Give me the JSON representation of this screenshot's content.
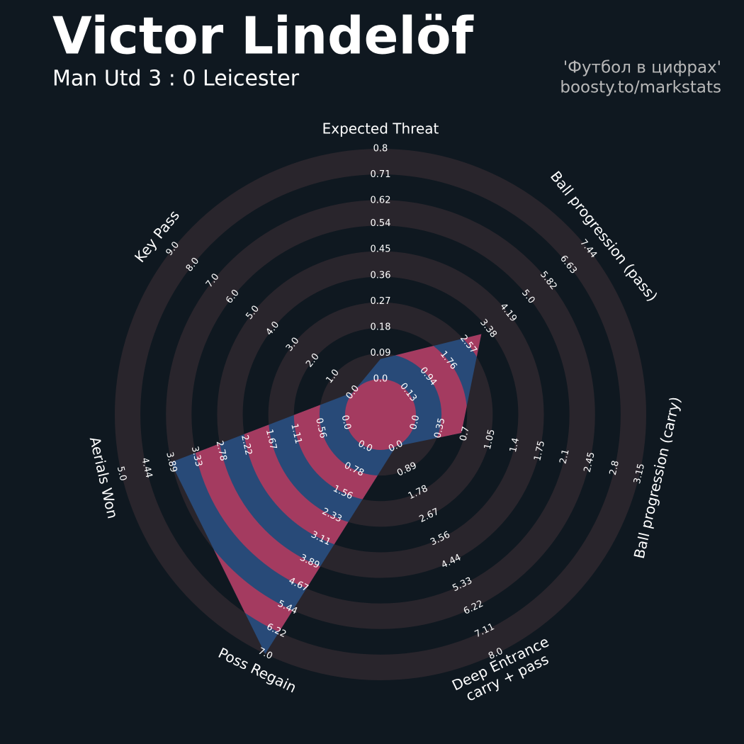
{
  "chart_data": {
    "type": "radar",
    "title": "Victor Lindelöf",
    "subtitle": "Man Utd 3 : 0 Leicester",
    "credits": [
      "'Футбол в цифрах'",
      "boosty.to/markstats"
    ],
    "categories": [
      "Expected Threat",
      "Ball progression (pass)",
      "Ball progression (carry)",
      "Deep Entrance\ncarry + pass",
      "Poss Regain",
      "Aerials Won",
      "Key Pass"
    ],
    "series": [
      {
        "color": "#284a78",
        "stripe_color": "#a43b60",
        "values": [
          0.07,
          3.1,
          0.65,
          0,
          7.0,
          3.9,
          0
        ]
      }
    ],
    "axes": [
      {
        "lim": [
          0,
          0.8
        ],
        "ticks": [
          {
            "value": 0,
            "label": "0.0"
          },
          0.09,
          0.18,
          0.27,
          0.36,
          0.45,
          0.54,
          0.62,
          0.71,
          0.8
        ]
      },
      {
        "lim": [
          0.13,
          7.44
        ],
        "ticks": [
          0.13,
          0.94,
          1.76,
          2.57,
          3.38,
          4.19,
          {
            "value": 5,
            "label": "5.0"
          },
          5.82,
          6.63,
          7.44
        ]
      },
      {
        "lim": [
          0,
          3.15
        ],
        "ticks": [
          {
            "value": 0,
            "label": "0.0"
          },
          0.35,
          0.7,
          1.05,
          1.4,
          1.75,
          2.1,
          2.45,
          2.8,
          3.15
        ]
      },
      {
        "lim": [
          0,
          8
        ],
        "ticks": [
          {
            "value": 0,
            "label": "0.0"
          },
          0.89,
          1.78,
          2.67,
          3.56,
          4.44,
          5.33,
          6.22,
          7.11,
          {
            "value": 8,
            "label": "8.0"
          }
        ]
      },
      {
        "lim": [
          0,
          7
        ],
        "ticks": [
          {
            "value": 0,
            "label": "0.0"
          },
          0.78,
          1.56,
          2.33,
          3.11,
          3.89,
          4.67,
          5.44,
          6.22,
          {
            "value": 7,
            "label": "7.0"
          }
        ]
      },
      {
        "lim": [
          0,
          5
        ],
        "ticks": [
          {
            "value": 0,
            "label": "0.0"
          },
          0.56,
          1.11,
          1.67,
          2.22,
          2.78,
          3.33,
          3.89,
          4.44,
          {
            "value": 5,
            "label": "5.0"
          }
        ]
      },
      {
        "lim": [
          0,
          9
        ],
        "ticks": [
          {
            "value": 0,
            "label": "0.0"
          },
          {
            "value": 1,
            "label": "1.0"
          },
          {
            "value": 2,
            "label": "2.0"
          },
          {
            "value": 3,
            "label": "3.0"
          },
          {
            "value": 4,
            "label": "4.0"
          },
          {
            "value": 5,
            "label": "5.0"
          },
          {
            "value": 6,
            "label": "6.0"
          },
          {
            "value": 7,
            "label": "7.0"
          },
          {
            "value": 8,
            "label": "8.0"
          },
          {
            "value": 9,
            "label": "9.0"
          }
        ]
      }
    ],
    "ring_color": "#29252c"
  }
}
